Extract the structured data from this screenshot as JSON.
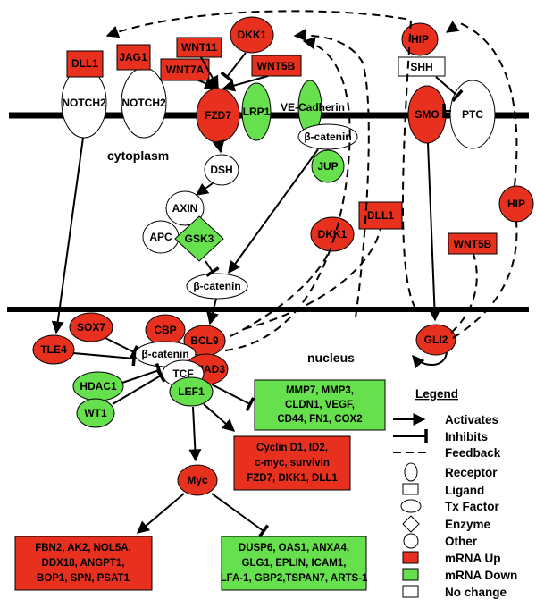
{
  "colors": {
    "up": "#e8301f",
    "down": "#66e04d",
    "none": "#ffffff",
    "line": "#000000"
  },
  "regions": {
    "cytoplasm": "cytoplasm",
    "nucleus": "nucleus"
  },
  "nodes": {
    "dll1_top": "DLL1",
    "jag1": "JAG1",
    "notch2_a": "NOTCH2",
    "notch2_b": "NOTCH2",
    "wnt11": "WNT11",
    "dkk1_top": "DKK1",
    "wnt7a": "WNT7A",
    "wnt5b_top": "WNT5B",
    "fzd7": "FZD7",
    "lrp1": "LRP1",
    "ve_cadherin": "VE-Cadherin",
    "b_catenin_mem": "β-catenin",
    "jup": "JUP",
    "hip_top": "HIP",
    "shh": "SHH",
    "smo": "SMO",
    "ptc": "PTC",
    "dsh": "DSH",
    "axin": "AXIN",
    "apc": "APC",
    "gsk3": "GSK3",
    "b_catenin_cyto": "β-catenin",
    "dkk1_mid": "DKK1",
    "dll1_mid": "DLL1",
    "wnt5b_mid": "WNT5B",
    "hip_mid": "HIP",
    "sox7": "SOX7",
    "cbp": "CBP",
    "tle4": "TLE4",
    "bcl9": "BCL9",
    "b_catenin_nuc": "β-catenin",
    "smad3": "SMAD3",
    "tcf": "TCF",
    "hdac1": "HDAC1",
    "lef1": "LEF1",
    "wt1": "WT1",
    "gli2": "GLI2",
    "myc": "Myc"
  },
  "gene_boxes": {
    "tcf_down": [
      "MMP7, MMP3,",
      "CLDN1, VEGF,",
      "CD44, FN1, COX2"
    ],
    "tcf_up": [
      "Cyclin D1, ID2,",
      "c-myc, survivin",
      "FZD7, DKK1, DLL1"
    ],
    "myc_up": [
      "FBN2, AK2, NOL5A,",
      "DDX18, ANGPT1,",
      "BOP1, SPN, PSAT1"
    ],
    "myc_down": [
      "DUSP6, OAS1, ANXA4,",
      "GLG1, EPLIN, ICAM1,",
      "LFA-1, GBP2,TSPAN7, ARTS-1"
    ]
  },
  "legend": {
    "title": "Legend",
    "items": [
      "Activates",
      "Inhibits",
      "Feedback",
      "Receptor",
      "Ligand",
      "Tx Factor",
      "Enzyme",
      "Other",
      "mRNA Up",
      "mRNA Down",
      "No change"
    ]
  }
}
